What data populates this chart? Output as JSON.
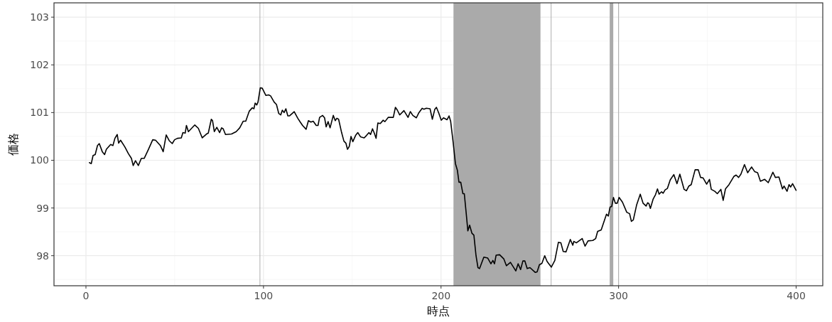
{
  "chart_data": {
    "type": "line",
    "xlabel": "時点",
    "ylabel": "価格",
    "xlim": [
      -18,
      415
    ],
    "ylim": [
      97.37,
      103.3
    ],
    "xticks": [
      0,
      100,
      200,
      300,
      400
    ],
    "yticks": [
      98,
      99,
      100,
      101,
      102,
      103
    ],
    "grid": true,
    "marker": "none",
    "line_style": "solid",
    "x": [
      1.9,
      3,
      4,
      5.2,
      6.5,
      7.5,
      9.2,
      10.5,
      11.5,
      13.9,
      15.2,
      16.3,
      17.6,
      18.4,
      19.5,
      21.9,
      23.9,
      25.6,
      26.6,
      27.9,
      29.5,
      31.2,
      32.8,
      35.2,
      37.6,
      39.2,
      41.9,
      43.5,
      45.2,
      46.9,
      48.6,
      49.9,
      51.5,
      53.7,
      54.6,
      55.9,
      56.6,
      57.7,
      61.3,
      63.3,
      65.5,
      67.9,
      68.9,
      70.6,
      71.3,
      72.3,
      73.7,
      75.3,
      76.4,
      77.3,
      78.6,
      82,
      84.6,
      86.6,
      88.6,
      90,
      92,
      93.7,
      94.6,
      95.3,
      96.2,
      96.9,
      98.2,
      99.3,
      101.3,
      102.9,
      104,
      106,
      107.3,
      108.6,
      109.7,
      110.6,
      111.6,
      112.6,
      113.7,
      114.6,
      117.3,
      119.3,
      120.7,
      122,
      124,
      125.3,
      126.7,
      128,
      129.7,
      130.7,
      131.6,
      133.3,
      134.4,
      135.3,
      136.4,
      137.5,
      139.3,
      140.4,
      141.3,
      142.3,
      144,
      145.3,
      146.4,
      147.3,
      148.3,
      149.3,
      150.3,
      152,
      153.1,
      154.7,
      156.7,
      158,
      159.4,
      160.3,
      161.4,
      162.4,
      163.4,
      164.4,
      165.8,
      167.4,
      168.4,
      170.3,
      173.1,
      174.3,
      175.4,
      176.7,
      179.1,
      181.4,
      182.7,
      184.1,
      186.1,
      187.4,
      189.4,
      190.3,
      191.7,
      193.8,
      195.1,
      196.5,
      197.4,
      198.7,
      200.1,
      201.4,
      203.4,
      204.5,
      205.4,
      206.8,
      208.1,
      209.2,
      210.1,
      211.1,
      212.3,
      213.1,
      214.3,
      215.1,
      216.1,
      217.4,
      218.5,
      219.7,
      220.8,
      221.7,
      224.1,
      226.3,
      228.1,
      229.2,
      230.1,
      231,
      233,
      235.4,
      236.8,
      239.1,
      242.1,
      243.4,
      244.8,
      246.1,
      247.2,
      248.5,
      250.1,
      253,
      254.1,
      255.4,
      256.8,
      258.4,
      259.7,
      262.1,
      264.1,
      266.1,
      267.5,
      268.8,
      270.4,
      272.8,
      274.2,
      274.8,
      276.2,
      279.5,
      281.1,
      282.8,
      285.5,
      287.1,
      288.2,
      290.2,
      293.2,
      294.2,
      295.2,
      296.1,
      297.1,
      298.2,
      299.2,
      300.3,
      302.2,
      304.6,
      306.2,
      307.2,
      308.3,
      310.2,
      312.2,
      313.8,
      315.5,
      316.4,
      317.1,
      317.9,
      319.5,
      320.8,
      321.9,
      322.8,
      324.2,
      325.1,
      326.2,
      327.5,
      329.1,
      331.1,
      332.9,
      334.5,
      336.9,
      338.2,
      339.6,
      340.9,
      343.1,
      344.9,
      346.2,
      347.6,
      349.6,
      351.2,
      352.2,
      354.2,
      355.6,
      357.6,
      358.9,
      360.2,
      362.2,
      364.9,
      366.2,
      367.6,
      368.9,
      370.9,
      372.7,
      374.9,
      376.7,
      378.3,
      379.9,
      382.3,
      384.3,
      386.9,
      388.3,
      390.3,
      392.3,
      393.2,
      394.9,
      396,
      396.9,
      398,
      400
    ],
    "series": [
      {
        "color": "#000000",
        "values": [
          99.95,
          99.93,
          100.1,
          100.12,
          100.31,
          100.35,
          100.18,
          100.12,
          100.23,
          100.33,
          100.31,
          100.46,
          100.54,
          100.36,
          100.42,
          100.28,
          100.14,
          100.04,
          99.89,
          99.99,
          99.89,
          100.04,
          100.04,
          100.23,
          100.43,
          100.42,
          100.31,
          100.18,
          100.53,
          100.41,
          100.35,
          100.43,
          100.46,
          100.47,
          100.58,
          100.57,
          100.73,
          100.6,
          100.74,
          100.67,
          100.47,
          100.55,
          100.57,
          100.86,
          100.83,
          100.6,
          100.69,
          100.58,
          100.68,
          100.66,
          100.54,
          100.55,
          100.6,
          100.68,
          100.82,
          100.82,
          101.03,
          101.1,
          101.08,
          101.2,
          101.16,
          101.22,
          101.52,
          101.51,
          101.36,
          101.37,
          101.35,
          101.22,
          101.17,
          100.98,
          100.95,
          101.05,
          101,
          101.08,
          100.93,
          100.93,
          101.02,
          100.88,
          100.8,
          100.73,
          100.65,
          100.83,
          100.8,
          100.82,
          100.73,
          100.73,
          100.9,
          100.94,
          100.89,
          100.7,
          100.81,
          100.68,
          100.94,
          100.83,
          100.88,
          100.86,
          100.58,
          100.4,
          100.36,
          100.23,
          100.29,
          100.5,
          100.39,
          100.53,
          100.58,
          100.49,
          100.47,
          100.52,
          100.58,
          100.54,
          100.66,
          100.57,
          100.46,
          100.78,
          100.77,
          100.84,
          100.81,
          100.9,
          100.9,
          101.11,
          101.05,
          100.95,
          101.04,
          100.9,
          101.02,
          100.94,
          100.89,
          100.99,
          101.09,
          101.07,
          101.09,
          101.08,
          100.86,
          101.07,
          101.11,
          100.99,
          100.84,
          100.89,
          100.85,
          100.93,
          100.82,
          100.38,
          99.93,
          99.79,
          99.54,
          99.54,
          99.3,
          99.3,
          98.84,
          98.52,
          98.64,
          98.47,
          98.43,
          98,
          97.75,
          97.73,
          97.97,
          97.95,
          97.83,
          97.9,
          97.83,
          98.01,
          98.02,
          97.93,
          97.79,
          97.86,
          97.68,
          97.83,
          97.71,
          97.89,
          97.89,
          97.73,
          97.75,
          97.65,
          97.66,
          97.81,
          97.84,
          98,
          97.88,
          97.76,
          97.9,
          98.28,
          98.27,
          98.09,
          98.08,
          98.34,
          98.22,
          98.3,
          98.27,
          98.36,
          98.2,
          98.31,
          98.32,
          98.36,
          98.51,
          98.54,
          98.87,
          98.83,
          99.02,
          99.03,
          99.22,
          99.1,
          99.1,
          99.22,
          99.12,
          98.91,
          98.88,
          98.72,
          98.75,
          99.07,
          99.29,
          99.1,
          99.04,
          99.11,
          99.09,
          98.99,
          99.19,
          99.28,
          99.4,
          99.29,
          99.34,
          99.31,
          99.38,
          99.41,
          99.59,
          99.7,
          99.51,
          99.71,
          99.39,
          99.36,
          99.46,
          99.49,
          99.8,
          99.8,
          99.64,
          99.63,
          99.5,
          99.6,
          99.39,
          99.35,
          99.3,
          99.39,
          99.16,
          99.4,
          99.49,
          99.66,
          99.69,
          99.64,
          99.71,
          99.91,
          99.74,
          99.86,
          99.76,
          99.74,
          99.56,
          99.6,
          99.53,
          99.75,
          99.64,
          99.65,
          99.4,
          99.46,
          99.35,
          99.49,
          99.44,
          99.51,
          99.37
        ]
      }
    ],
    "ref_lines": [
      {
        "axis": "x",
        "value": 98,
        "color": "#999999"
      },
      {
        "axis": "x",
        "value": 262,
        "color": "#999999"
      },
      {
        "axis": "x",
        "value": 300,
        "color": "#999999"
      }
    ],
    "bands": [
      {
        "axis": "x",
        "from": 207,
        "to": 256,
        "color": "#aaaaaa"
      },
      {
        "axis": "x",
        "from": 295,
        "to": 297,
        "color": "#aaaaaa"
      }
    ]
  }
}
